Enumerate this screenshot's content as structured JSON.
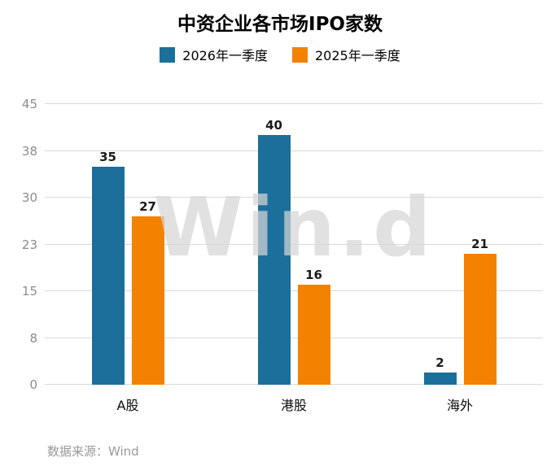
{
  "watermark": "Win.d",
  "footer": "数据来源：Wind",
  "chart_data": {
    "type": "bar",
    "title": "中资企业各市场IPO家数",
    "categories": [
      "A股",
      "港股",
      "海外"
    ],
    "series": [
      {
        "name": "2026年一季度",
        "color": "#1c6f9b",
        "values": [
          35,
          40,
          2
        ]
      },
      {
        "name": "2025年一季度",
        "color": "#f28200",
        "values": [
          27,
          16,
          21
        ]
      }
    ],
    "ylim": [
      0,
      45
    ],
    "ytick_labels": [
      "0",
      "8",
      "15",
      "23",
      "30",
      "38",
      "45"
    ],
    "grid": true,
    "legend_position": "top",
    "colors": {
      "series1": "#1c6f9b",
      "series2": "#f28200",
      "gridline": "#d9d9d9",
      "tick_text": "#8c8c8c"
    }
  }
}
